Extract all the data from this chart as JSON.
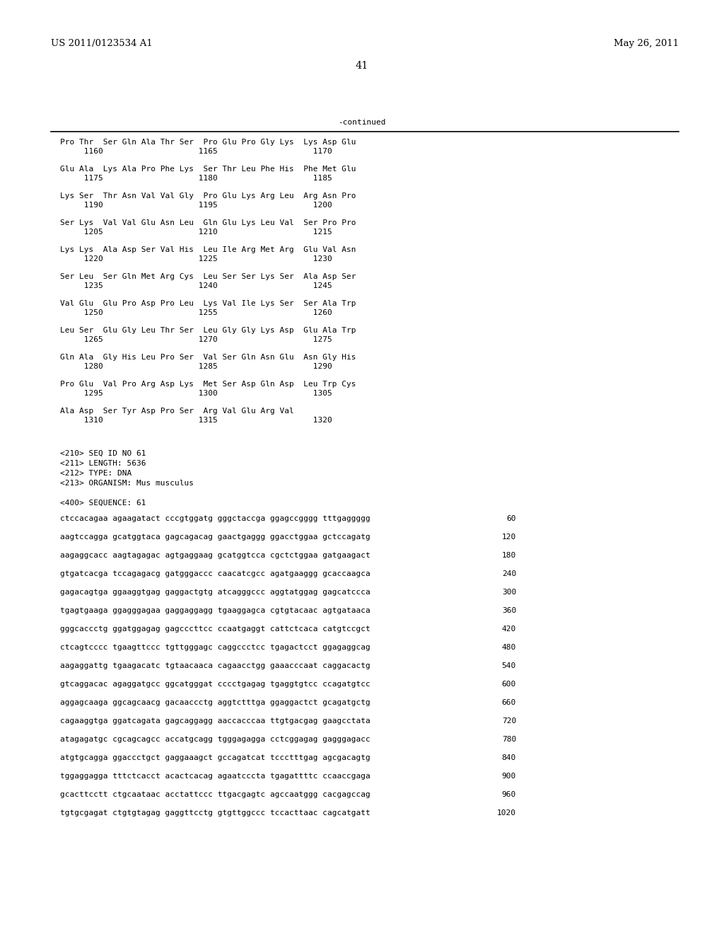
{
  "header_left": "US 2011/0123534 A1",
  "header_right": "May 26, 2011",
  "page_number": "41",
  "continued_label": "-continued",
  "background_color": "#ffffff",
  "text_color": "#000000",
  "font_size_header": 9.5,
  "font_size_page": 10.5,
  "font_size_mono": 8.0,
  "amino_acid_lines": [
    [
      "Pro Thr  Ser Gln Ala Thr Ser  Pro Glu Pro Gly Lys  Lys Asp Glu",
      "     1160                    1165                    1170"
    ],
    [
      "Glu Ala  Lys Ala Pro Phe Lys  Ser Thr Leu Phe His  Phe Met Glu",
      "     1175                    1180                    1185"
    ],
    [
      "Lys Ser  Thr Asn Val Val Gly  Pro Glu Lys Arg Leu  Arg Asn Pro",
      "     1190                    1195                    1200"
    ],
    [
      "Ser Lys  Val Val Glu Asn Leu  Gln Glu Lys Leu Val  Ser Pro Pro",
      "     1205                    1210                    1215"
    ],
    [
      "Lys Lys  Ala Asp Ser Val His  Leu Ile Arg Met Arg  Glu Val Asn",
      "     1220                    1225                    1230"
    ],
    [
      "Ser Leu  Ser Gln Met Arg Cys  Leu Ser Ser Lys Ser  Ala Asp Ser",
      "     1235                    1240                    1245"
    ],
    [
      "Val Glu  Glu Pro Asp Pro Leu  Lys Val Ile Lys Ser  Ser Ala Trp",
      "     1250                    1255                    1260"
    ],
    [
      "Leu Ser  Glu Gly Leu Thr Ser  Leu Gly Gly Lys Asp  Glu Ala Trp",
      "     1265                    1270                    1275"
    ],
    [
      "Gln Ala  Gly His Leu Pro Ser  Val Ser Gln Asn Glu  Asn Gly His",
      "     1280                    1285                    1290"
    ],
    [
      "Pro Glu  Val Pro Arg Asp Lys  Met Ser Asp Gln Asp  Leu Trp Cys",
      "     1295                    1300                    1305"
    ],
    [
      "Ala Asp  Ser Tyr Asp Pro Ser  Arg Val Glu Arg Val",
      "     1310                    1315                    1320"
    ]
  ],
  "metadata_lines": [
    "<210> SEQ ID NO 61",
    "<211> LENGTH: 5636",
    "<212> TYPE: DNA",
    "<213> ORGANISM: Mus musculus"
  ],
  "sequence_header": "<400> SEQUENCE: 61",
  "dna_lines": [
    [
      "ctccacagaa agaagatact cccgtggatg gggctaccga ggagccgggg tttgaggggg",
      "60"
    ],
    [
      "aagtccagga gcatggtaca gagcagacag gaactgaggg ggacctggaa gctccagatg",
      "120"
    ],
    [
      "aagaggcacc aagtagagac agtgaggaag gcatggtcca cgctctggaa gatgaagact",
      "180"
    ],
    [
      "gtgatcacga tccagagacg gatgggaccc caacatcgcc agatgaaggg gcaccaagca",
      "240"
    ],
    [
      "gagacagtga ggaaggtgag gaggactgtg atcagggccc aggtatggag gagcatccca",
      "300"
    ],
    [
      "tgagtgaaga ggagggagaa gaggaggagg tgaaggagca cgtgtacaac agtgataaca",
      "360"
    ],
    [
      "gggcaccctg ggatggagag gagcccttcc ccaatgaggt cattctcaca catgtccgct",
      "420"
    ],
    [
      "ctcagtcccc tgaagttccc tgttgggagc caggccctcc tgagactcct ggagaggcag",
      "480"
    ],
    [
      "aagaggattg tgaagacatc tgtaacaaca cagaacctgg gaaacccaat caggacactg",
      "540"
    ],
    [
      "gtcaggacac agaggatgcc ggcatgggat cccctgagag tgaggtgtcc ccagatgtcc",
      "600"
    ],
    [
      "aggagcaaga ggcagcaacg gacaaccctg aggtctttga ggaggactct gcagatgctg",
      "660"
    ],
    [
      "cagaaggtga ggatcagata gagcaggagg aaccacccaa ttgtgacgag gaagcctata",
      "720"
    ],
    [
      "atagagatgc cgcagcagcc accatgcagg tgggagagga cctcggagag gagggagacc",
      "780"
    ],
    [
      "atgtgcagga ggaccctgct gaggaaagct gccagatcat tccctttgag agcgacagtg",
      "840"
    ],
    [
      "tggaggagga tttctcacct acactcacag agaatcccta tgagattttc ccaaccgaga",
      "900"
    ],
    [
      "gcacttcctt ctgcaataac acctattccc ttgacgagtc agccaatggg cacgagccag",
      "960"
    ],
    [
      "tgtgcgagat ctgtgtagag gaggttcctg gtgttggccc tccacttaac cagcatgatt",
      "1020"
    ]
  ]
}
